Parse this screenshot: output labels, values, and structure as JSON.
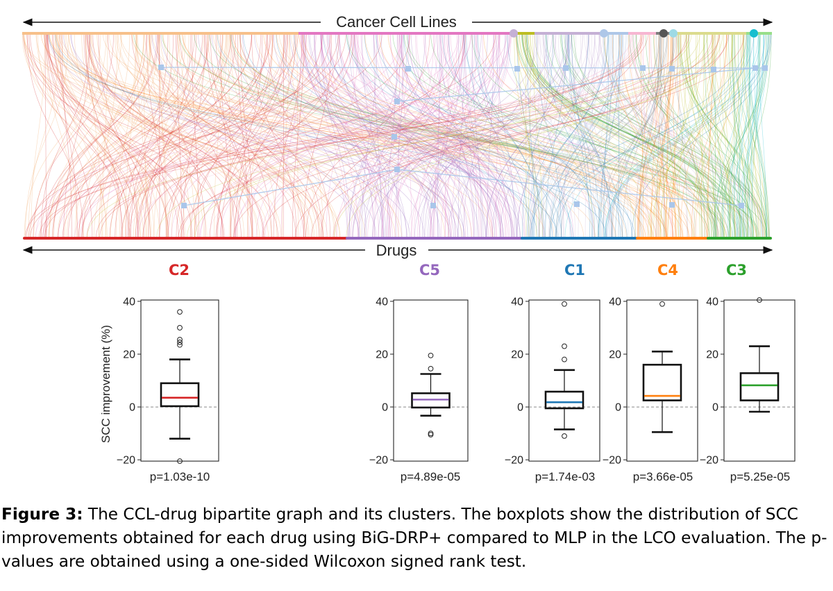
{
  "graph": {
    "top_axis_label": "Cancer Cell Lines",
    "bottom_axis_label": "Drugs"
  },
  "clusters": [
    {
      "id": "C2",
      "label": "C2",
      "color": "#d62728",
      "light_color": "#f5a05a",
      "pvalue": "p=1.03e-10",
      "box": {
        "whisker_low": -12,
        "q1": 0.3,
        "median": 3.5,
        "q3": 9,
        "whisker_high": 18,
        "outliers": [
          36,
          30,
          25.5,
          24.5,
          23.5,
          -20.5
        ]
      }
    },
    {
      "id": "C5",
      "label": "C5",
      "color": "#9467bd",
      "light_color": "#e377c2",
      "pvalue": "p=4.89e-05",
      "box": {
        "whisker_low": -3.3,
        "q1": -0.2,
        "median": 2.8,
        "q3": 5.2,
        "whisker_high": 12.5,
        "outliers": [
          19.5,
          14.5,
          -10,
          -10.5
        ]
      }
    },
    {
      "id": "C1",
      "label": "C1",
      "color": "#1f77b4",
      "light_color": "#aec7e8",
      "pvalue": "p=1.74e-03",
      "box": {
        "whisker_low": -8.5,
        "q1": -0.5,
        "median": 1.8,
        "q3": 5.8,
        "whisker_high": 14,
        "outliers": [
          39,
          23,
          18,
          -11
        ]
      }
    },
    {
      "id": "C4",
      "label": "C4",
      "color": "#ff7f0e",
      "light_color": "#7f7f7f",
      "pvalue": "p=3.66e-05",
      "box": {
        "whisker_low": -9.5,
        "q1": 2.5,
        "median": 4.2,
        "q3": 16,
        "whisker_high": 21,
        "outliers": [
          39
        ]
      }
    },
    {
      "id": "C3",
      "label": "C3",
      "color": "#2ca02c",
      "light_color": "#bcbd22",
      "pvalue": "p=5.25e-05",
      "box": {
        "whisker_low": -1.8,
        "q1": 2.5,
        "median": 8.2,
        "q3": 12.8,
        "whisker_high": 23,
        "outliers": [
          40.5
        ]
      }
    }
  ],
  "chart_data": {
    "type": "boxplot",
    "ylabel": "SCC improvement (%)",
    "ylim": [
      -20.5,
      40.5
    ],
    "yticks": [
      -20,
      0,
      20,
      40
    ],
    "ytick_labels": [
      "−20",
      "0",
      "20",
      "40"
    ],
    "categories": [
      "C2",
      "C5",
      "C1",
      "C4",
      "C3"
    ],
    "reference_line": 0
  },
  "caption": {
    "label": "Figure 3:",
    "text": " The CCL-drug bipartite graph and its clusters. The boxplots show the distribution of SCC improvements obtained for each drug using BiG-DRP+ compared to MLP in the LCO evaluation. The p-values are obtained using a one-sided Wilcoxon signed rank test."
  }
}
